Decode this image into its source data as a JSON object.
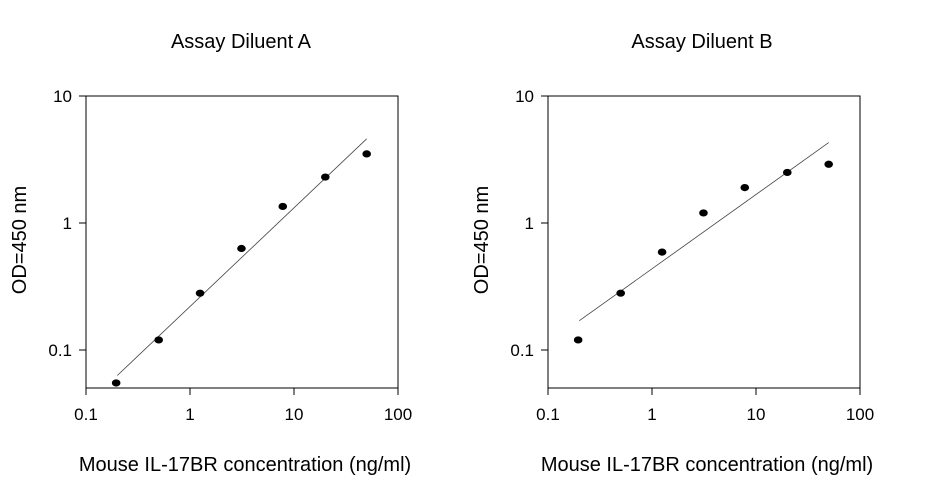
{
  "chart_data": [
    {
      "type": "scatter",
      "title": "Assay Diluent A",
      "xlabel": "Mouse IL-17BR concentration (ng/ml)",
      "ylabel": "OD=450 nm",
      "xscale": "log",
      "yscale": "log",
      "xlim": [
        0.1,
        100
      ],
      "ylim": [
        0.05,
        10
      ],
      "xticks": [
        "0.1",
        "1",
        "10",
        "100"
      ],
      "yticks": [
        "0.1",
        "1",
        "10"
      ],
      "grid": false,
      "series": [
        {
          "x": [
            0.195,
            0.5,
            1.25,
            3.125,
            7.8,
            20,
            50
          ],
          "y": [
            0.055,
            0.12,
            0.28,
            0.63,
            1.35,
            2.3,
            3.5
          ]
        }
      ],
      "fit_line": {
        "x": [
          0.2,
          50
        ],
        "y": [
          0.063,
          4.6
        ]
      }
    },
    {
      "type": "scatter",
      "title": "Assay Diluent B",
      "xlabel": "Mouse IL-17BR concentration (ng/ml)",
      "ylabel": "OD=450 nm",
      "xscale": "log",
      "yscale": "log",
      "xlim": [
        0.1,
        100
      ],
      "ylim": [
        0.05,
        10
      ],
      "xticks": [
        "0.1",
        "1",
        "10",
        "100"
      ],
      "yticks": [
        "0.1",
        "1",
        "10"
      ],
      "grid": false,
      "series": [
        {
          "x": [
            0.195,
            0.5,
            1.25,
            3.125,
            7.8,
            20,
            50
          ],
          "y": [
            0.12,
            0.28,
            0.59,
            1.2,
            1.9,
            2.5,
            2.9
          ]
        }
      ],
      "fit_line": {
        "x": [
          0.2,
          50
        ],
        "y": [
          0.17,
          4.3
        ]
      }
    }
  ]
}
